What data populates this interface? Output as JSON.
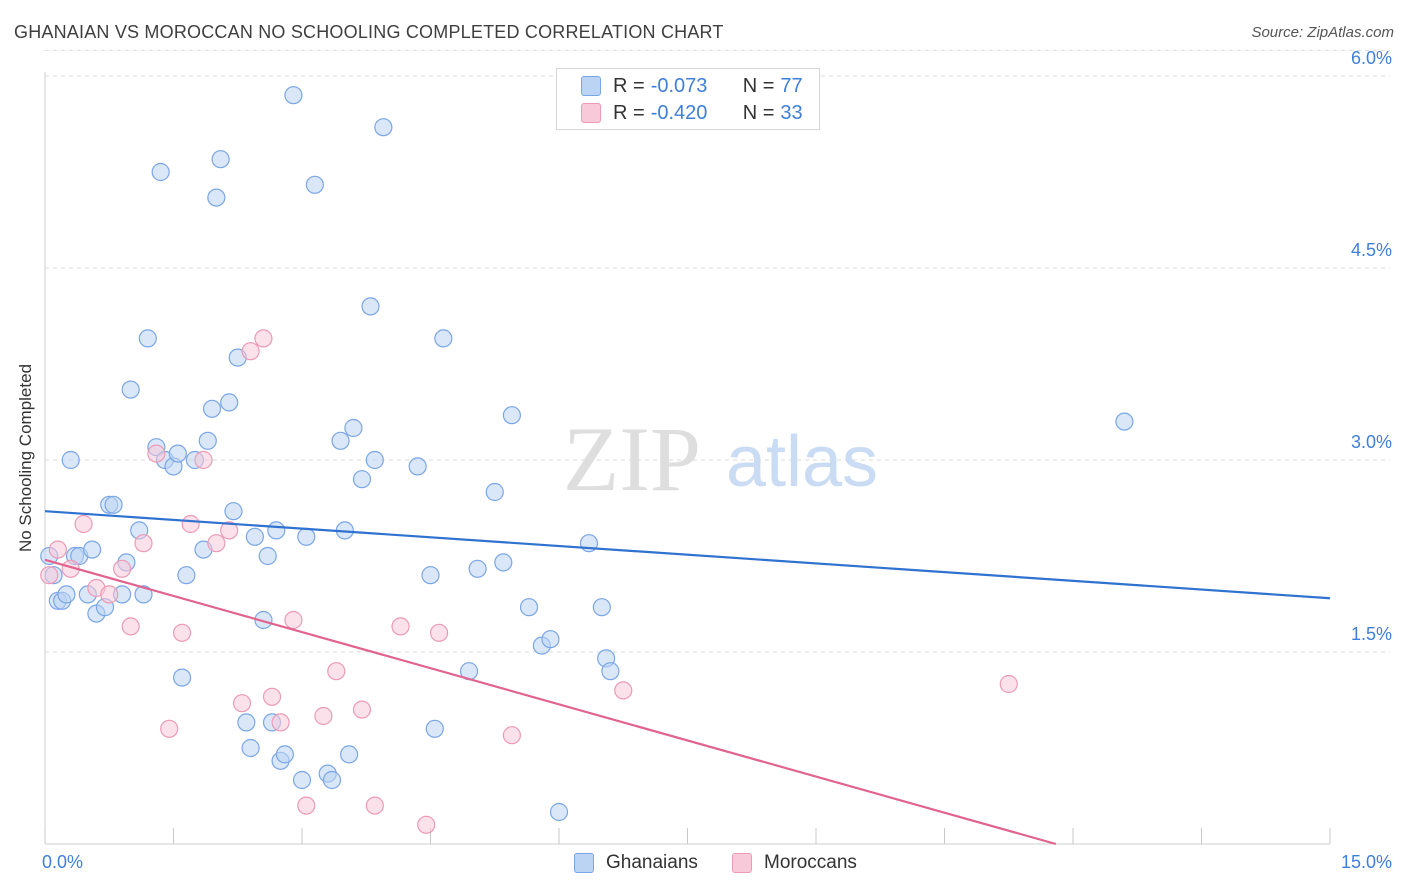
{
  "header": {
    "title": "GHANAIAN VS MOROCCAN NO SCHOOLING COMPLETED CORRELATION CHART",
    "source": "Source: ZipAtlas.com"
  },
  "watermark": {
    "zip": "ZIP",
    "atlas": "atlas"
  },
  "legend_top": {
    "rows": [
      {
        "r_label": "R =",
        "r_value": "-0.073",
        "n_label": "N =",
        "n_value": "77"
      },
      {
        "r_label": "R =",
        "r_value": "-0.420",
        "n_label": "N =",
        "n_value": "33"
      }
    ]
  },
  "legend_bottom": {
    "items": [
      "Ghanaians",
      "Moroccans"
    ]
  },
  "colors": {
    "blue_fill": "#bcd4f4",
    "blue_stroke": "#7aa6e6",
    "blue_line": "#2f72d0",
    "pink_fill": "#f8c9d9",
    "pink_stroke": "#ec9ab6",
    "pink_line": "#e0648f",
    "tick_text": "#3f7fd9",
    "grid": "#dadada"
  },
  "chart_data": {
    "type": "scatter",
    "title": "GHANAIAN VS MOROCCAN NO SCHOOLING COMPLETED CORRELATION CHART",
    "xlabel": "",
    "ylabel": "No Schooling Completed",
    "xlim": [
      0,
      15
    ],
    "ylim": [
      0,
      6.2
    ],
    "x_ticks": [
      "0.0%",
      "15.0%"
    ],
    "y_ticks": [
      {
        "value": 1.5,
        "label": "1.5%"
      },
      {
        "value": 3.0,
        "label": "3.0%"
      },
      {
        "value": 4.5,
        "label": "4.5%"
      },
      {
        "value": 6.0,
        "label": "6.0%"
      }
    ],
    "grid": true,
    "legend_position": "bottom",
    "series": [
      {
        "name": "Ghanaians",
        "color": "#bcd4f4",
        "points": [
          [
            0.05,
            2.25
          ],
          [
            0.1,
            2.1
          ],
          [
            0.15,
            1.9
          ],
          [
            0.2,
            1.9
          ],
          [
            0.25,
            1.95
          ],
          [
            0.3,
            3.0
          ],
          [
            0.35,
            2.25
          ],
          [
            0.4,
            2.25
          ],
          [
            0.5,
            1.95
          ],
          [
            0.55,
            2.3
          ],
          [
            0.6,
            1.8
          ],
          [
            0.7,
            1.85
          ],
          [
            0.75,
            2.65
          ],
          [
            0.8,
            2.65
          ],
          [
            0.9,
            1.95
          ],
          [
            0.95,
            2.2
          ],
          [
            1.0,
            3.55
          ],
          [
            1.1,
            2.45
          ],
          [
            1.15,
            1.95
          ],
          [
            1.2,
            3.95
          ],
          [
            1.3,
            3.1
          ],
          [
            1.35,
            5.25
          ],
          [
            1.4,
            3.0
          ],
          [
            1.5,
            2.95
          ],
          [
            1.55,
            3.05
          ],
          [
            1.6,
            1.3
          ],
          [
            1.65,
            2.1
          ],
          [
            1.75,
            3.0
          ],
          [
            1.85,
            2.3
          ],
          [
            1.9,
            3.15
          ],
          [
            1.95,
            3.4
          ],
          [
            2.0,
            5.05
          ],
          [
            2.05,
            5.35
          ],
          [
            2.15,
            3.45
          ],
          [
            2.2,
            2.6
          ],
          [
            2.25,
            3.8
          ],
          [
            2.35,
            0.95
          ],
          [
            2.4,
            0.75
          ],
          [
            2.45,
            2.4
          ],
          [
            2.55,
            1.75
          ],
          [
            2.6,
            2.25
          ],
          [
            2.65,
            0.95
          ],
          [
            2.7,
            2.45
          ],
          [
            2.75,
            0.65
          ],
          [
            2.8,
            0.7
          ],
          [
            2.9,
            5.85
          ],
          [
            3.0,
            0.5
          ],
          [
            3.05,
            2.4
          ],
          [
            3.15,
            5.15
          ],
          [
            3.3,
            0.55
          ],
          [
            3.35,
            0.5
          ],
          [
            3.45,
            3.15
          ],
          [
            3.5,
            2.45
          ],
          [
            3.55,
            0.7
          ],
          [
            3.6,
            3.25
          ],
          [
            3.7,
            2.85
          ],
          [
            3.8,
            4.2
          ],
          [
            3.85,
            3.0
          ],
          [
            3.95,
            5.6
          ],
          [
            4.35,
            2.95
          ],
          [
            4.5,
            2.1
          ],
          [
            4.55,
            0.9
          ],
          [
            4.65,
            3.95
          ],
          [
            4.95,
            1.35
          ],
          [
            5.05,
            2.15
          ],
          [
            5.25,
            2.75
          ],
          [
            5.35,
            2.2
          ],
          [
            5.45,
            3.35
          ],
          [
            5.65,
            1.85
          ],
          [
            5.8,
            1.55
          ],
          [
            5.9,
            1.6
          ],
          [
            6.0,
            0.25
          ],
          [
            6.35,
            2.35
          ],
          [
            6.5,
            1.85
          ],
          [
            6.55,
            1.45
          ],
          [
            6.6,
            1.35
          ],
          [
            12.6,
            3.3
          ]
        ]
      },
      {
        "name": "Moroccans",
        "color": "#f8c9d9",
        "points": [
          [
            0.05,
            2.1
          ],
          [
            0.15,
            2.3
          ],
          [
            0.3,
            2.15
          ],
          [
            0.45,
            2.5
          ],
          [
            0.6,
            2.0
          ],
          [
            0.75,
            1.95
          ],
          [
            0.9,
            2.15
          ],
          [
            1.0,
            1.7
          ],
          [
            1.15,
            2.35
          ],
          [
            1.3,
            3.05
          ],
          [
            1.45,
            0.9
          ],
          [
            1.6,
            1.65
          ],
          [
            1.7,
            2.5
          ],
          [
            1.85,
            3.0
          ],
          [
            2.0,
            2.35
          ],
          [
            2.15,
            2.45
          ],
          [
            2.3,
            1.1
          ],
          [
            2.4,
            3.85
          ],
          [
            2.55,
            3.95
          ],
          [
            2.65,
            1.15
          ],
          [
            2.75,
            0.95
          ],
          [
            2.9,
            1.75
          ],
          [
            3.05,
            0.3
          ],
          [
            3.25,
            1.0
          ],
          [
            3.4,
            1.35
          ],
          [
            3.7,
            1.05
          ],
          [
            3.85,
            0.3
          ],
          [
            4.15,
            1.7
          ],
          [
            4.45,
            0.15
          ],
          [
            4.6,
            1.65
          ],
          [
            5.45,
            0.85
          ],
          [
            6.75,
            1.2
          ],
          [
            11.25,
            1.25
          ]
        ]
      }
    ],
    "trend_lines": [
      {
        "series": "Ghanaians",
        "x": [
          0,
          15
        ],
        "y": [
          2.6,
          1.92
        ]
      },
      {
        "series": "Moroccans",
        "x": [
          0,
          11.8
        ],
        "y": [
          2.22,
          0
        ]
      }
    ]
  }
}
